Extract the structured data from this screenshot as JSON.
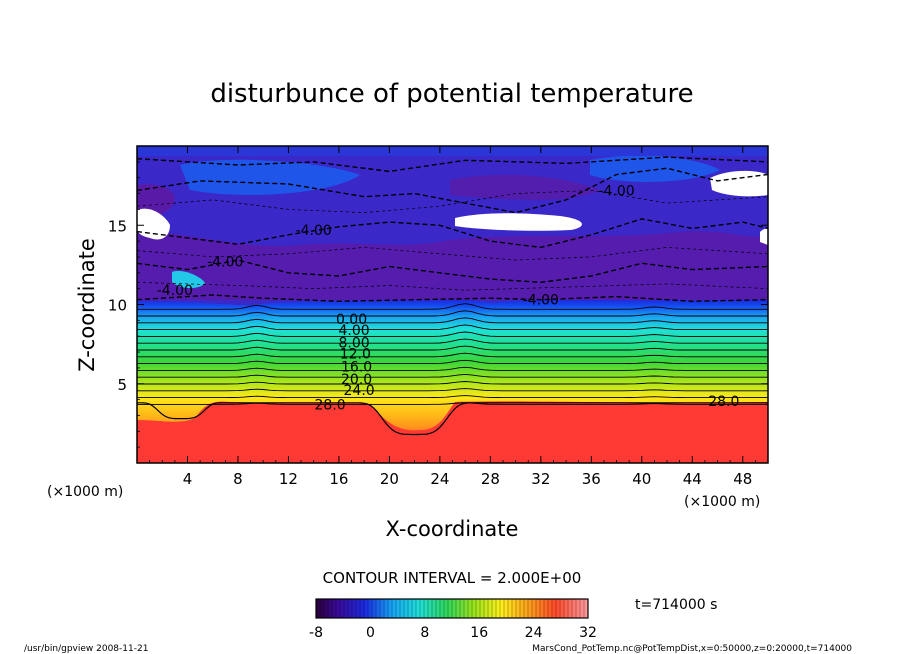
{
  "chart_data": {
    "type": "heatmap",
    "title": "disturbunce of potential temperature",
    "xlabel": "X-coordinate",
    "ylabel": "Z-coordinate",
    "x_unit_left": "(×1000 m)",
    "x_unit_right": "(×1000 m)",
    "xlim": [
      0,
      50
    ],
    "ylim": [
      0,
      20
    ],
    "x_ticks": [
      4,
      8,
      12,
      16,
      20,
      24,
      28,
      32,
      36,
      40,
      44,
      48
    ],
    "y_ticks": [
      5,
      10,
      15
    ],
    "contour_interval_text": "CONTOUR INTERVAL = 2.000E+00",
    "contour_levels": [
      -4,
      0,
      4,
      8,
      12,
      16,
      20,
      24,
      28
    ],
    "contour_labels": [
      {
        "text": "-4.00",
        "x": 14,
        "z": 14.7
      },
      {
        "text": "-4.00",
        "x": 7,
        "z": 12.7
      },
      {
        "text": "-4.00",
        "x": 3,
        "z": 10.9
      },
      {
        "text": "-4.00",
        "x": 32,
        "z": 10.3
      },
      {
        "text": "-4.00",
        "x": 38,
        "z": 17.2
      },
      {
        "text": "0.00",
        "x": 17,
        "z": 9.1
      },
      {
        "text": "4.00",
        "x": 17.2,
        "z": 8.4
      },
      {
        "text": "8.00",
        "x": 17.2,
        "z": 7.6
      },
      {
        "text": "12.0",
        "x": 17.3,
        "z": 6.9
      },
      {
        "text": "16.0",
        "x": 17.4,
        "z": 6.1
      },
      {
        "text": "20.0",
        "x": 17.4,
        "z": 5.3
      },
      {
        "text": "24.0",
        "x": 17.6,
        "z": 4.6
      },
      {
        "text": "28.0",
        "x": 15.3,
        "z": 3.7
      },
      {
        "text": "28.0",
        "x": 46.5,
        "z": 3.9
      }
    ],
    "colorbar": {
      "min": -8,
      "max": 32,
      "tick_labels": [
        "-8",
        "0",
        "8",
        "16",
        "24",
        "32"
      ],
      "tick_values": [
        -8,
        0,
        8,
        16,
        24,
        32
      ]
    },
    "time_label": "t=714000 s",
    "footer_left": "/usr/bin/gpview   2008-11-21",
    "footer_right": "MarsCond_PotTemp.nc@PotTempDist,x=0:50000,z=0:20000,t=714000"
  }
}
